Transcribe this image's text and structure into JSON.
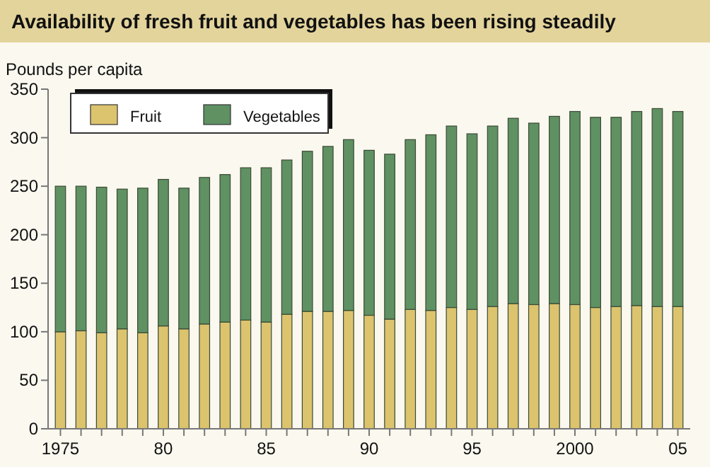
{
  "chart_data": {
    "type": "bar",
    "stacked": true,
    "title": "Availability of fresh fruit and vegetables has been rising steadily",
    "ylabel": "Pounds per capita",
    "x": [
      1975,
      1976,
      1977,
      1978,
      1979,
      1980,
      1981,
      1982,
      1983,
      1984,
      1985,
      1986,
      1987,
      1988,
      1989,
      1990,
      1991,
      1992,
      1993,
      1994,
      1995,
      1996,
      1997,
      1998,
      1999,
      2000,
      2001,
      2002,
      2003,
      2004,
      2005
    ],
    "series": [
      {
        "name": "Fruit",
        "color": "#dcc36e",
        "values": [
          100,
          101,
          99,
          103,
          99,
          106,
          103,
          108,
          110,
          112,
          110,
          118,
          121,
          121,
          122,
          117,
          113,
          123,
          122,
          125,
          123,
          126,
          129,
          128,
          129,
          128,
          125,
          126,
          127,
          126,
          126
        ]
      },
      {
        "name": "Vegetables",
        "color": "#5f9163",
        "values": [
          150,
          149,
          150,
          144,
          149,
          151,
          145,
          151,
          152,
          157,
          159,
          159,
          165,
          170,
          176,
          170,
          170,
          175,
          181,
          187,
          181,
          186,
          191,
          187,
          193,
          199,
          196,
          195,
          200,
          204,
          201
        ]
      }
    ],
    "xlim": [
      1974.4,
      2005.6
    ],
    "xticks": [
      {
        "value": 1975,
        "label": "1975"
      },
      {
        "value": 1976,
        "label": null
      },
      {
        "value": 1977,
        "label": null
      },
      {
        "value": 1978,
        "label": null
      },
      {
        "value": 1979,
        "label": null
      },
      {
        "value": 1980,
        "label": "80"
      },
      {
        "value": 1981,
        "label": null
      },
      {
        "value": 1982,
        "label": null
      },
      {
        "value": 1983,
        "label": null
      },
      {
        "value": 1984,
        "label": null
      },
      {
        "value": 1985,
        "label": "85"
      },
      {
        "value": 1986,
        "label": null
      },
      {
        "value": 1987,
        "label": null
      },
      {
        "value": 1988,
        "label": null
      },
      {
        "value": 1989,
        "label": null
      },
      {
        "value": 1990,
        "label": "90"
      },
      {
        "value": 1991,
        "label": null
      },
      {
        "value": 1992,
        "label": null
      },
      {
        "value": 1993,
        "label": null
      },
      {
        "value": 1994,
        "label": null
      },
      {
        "value": 1995,
        "label": "95"
      },
      {
        "value": 1996,
        "label": null
      },
      {
        "value": 1997,
        "label": null
      },
      {
        "value": 1998,
        "label": null
      },
      {
        "value": 1999,
        "label": null
      },
      {
        "value": 2000,
        "label": "2000"
      },
      {
        "value": 2001,
        "label": null
      },
      {
        "value": 2002,
        "label": null
      },
      {
        "value": 2003,
        "label": null
      },
      {
        "value": 2004,
        "label": null
      },
      {
        "value": 2005,
        "label": "05"
      }
    ],
    "ylim": [
      0,
      350
    ],
    "yticks": [
      0,
      50,
      100,
      150,
      200,
      250,
      300,
      350
    ],
    "grid": false,
    "legend": "top left"
  }
}
